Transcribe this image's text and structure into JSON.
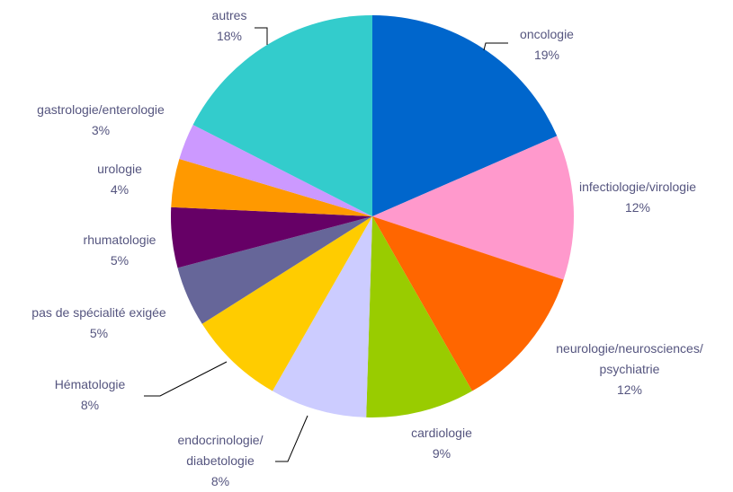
{
  "chart_data": {
    "type": "pie",
    "categories": [
      "oncologie",
      "infectiologie/virologie",
      "neurologie/neurosciences/\npsychiatrie",
      "cardiologie",
      "endocrinologie/\ndiabetologie",
      "Hématologie",
      "pas de spécialité exigée",
      "rhumatologie",
      "urologie",
      "gastrologie/enterologie",
      "autres"
    ],
    "values": [
      19,
      12,
      12,
      9,
      8,
      8,
      5,
      5,
      4,
      3,
      18
    ],
    "value_labels": [
      "19%",
      "12%",
      "12%",
      "9%",
      "8%",
      "8%",
      "5%",
      "5%",
      "4%",
      "3%",
      "18%"
    ],
    "colors": [
      "#0066cc",
      "#ff99cc",
      "#ff6600",
      "#99cc00",
      "#ccccff",
      "#ffcc00",
      "#666699",
      "#660066",
      "#ff9900",
      "#cc99ff",
      "#33cccc"
    ]
  }
}
